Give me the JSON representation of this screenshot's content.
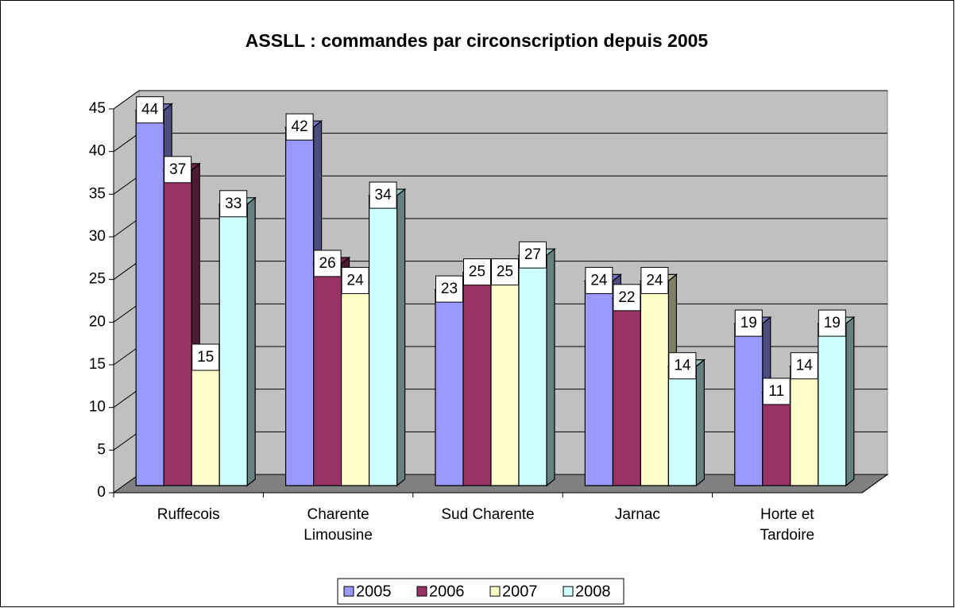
{
  "chart_data": {
    "type": "bar3d",
    "title": "ASSLL : commandes par circonscription depuis 2005",
    "categories": [
      "Ruffecois",
      "Charente Limousine",
      "Sud Charente",
      "Jarnac",
      "Horte et Tardoire"
    ],
    "series": [
      {
        "name": "2005",
        "color": "#9999ff",
        "values": [
          44,
          42,
          23,
          24,
          19
        ]
      },
      {
        "name": "2006",
        "color": "#993366",
        "values": [
          37,
          26,
          25,
          22,
          11
        ]
      },
      {
        "name": "2007",
        "color": "#ffffcc",
        "values": [
          15,
          24,
          25,
          24,
          14
        ]
      },
      {
        "name": "2008",
        "color": "#ccffff",
        "values": [
          33,
          34,
          27,
          14,
          19
        ]
      }
    ],
    "ylim": [
      0,
      45
    ],
    "yticks": [
      0,
      5,
      10,
      15,
      20,
      25,
      30,
      35,
      40,
      45
    ],
    "grid": true,
    "data_labels": true,
    "legend": "bottom"
  }
}
